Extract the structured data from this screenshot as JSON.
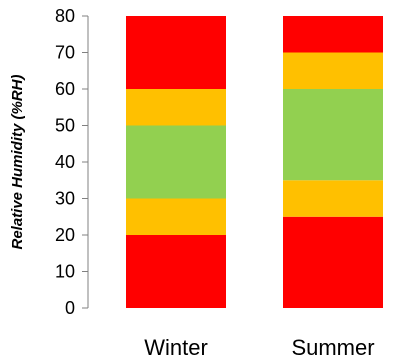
{
  "chart_data": {
    "type": "bar",
    "stacked": true,
    "categories": [
      "Winter",
      "Summer"
    ],
    "ylabel": "Relative Humidity  (%RH)",
    "xlabel": "",
    "title": "",
    "ylim": [
      0,
      80
    ],
    "yticks": [
      "0",
      "10",
      "20",
      "30",
      "40",
      "50",
      "60",
      "70",
      "80"
    ],
    "grid": false,
    "legend": "none",
    "colors": {
      "red": "#ff0000",
      "amber": "#ffc000",
      "green": "#92d050"
    },
    "bands": [
      {
        "category": "Winter",
        "from": 0,
        "to": 20,
        "color": "red"
      },
      {
        "category": "Winter",
        "from": 20,
        "to": 30,
        "color": "amber"
      },
      {
        "category": "Winter",
        "from": 30,
        "to": 50,
        "color": "green"
      },
      {
        "category": "Winter",
        "from": 50,
        "to": 60,
        "color": "amber"
      },
      {
        "category": "Winter",
        "from": 60,
        "to": 80,
        "color": "red"
      },
      {
        "category": "Summer",
        "from": 0,
        "to": 25,
        "color": "red"
      },
      {
        "category": "Summer",
        "from": 25,
        "to": 35,
        "color": "amber"
      },
      {
        "category": "Summer",
        "from": 35,
        "to": 60,
        "color": "green"
      },
      {
        "category": "Summer",
        "from": 60,
        "to": 70,
        "color": "amber"
      },
      {
        "category": "Summer",
        "from": 70,
        "to": 80,
        "color": "red"
      }
    ]
  }
}
